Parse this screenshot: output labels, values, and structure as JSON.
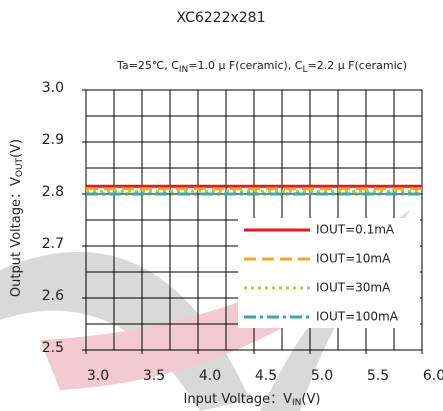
{
  "chart_data": {
    "type": "line",
    "title": "XC6222x281",
    "subtitle": [
      "Ta=25℃, C",
      "IN",
      "=1.0 μ F(ceramic), C",
      "L",
      "=2.2 μ F(ceramic)"
    ],
    "x_label": [
      "Input Voltage：V",
      "IN",
      "(V)"
    ],
    "y_label": [
      "Output Voltage：V",
      "OUT",
      "(V)"
    ],
    "x": [
      3.0,
      3.5,
      4.0,
      4.5,
      5.0,
      5.5,
      6.0
    ],
    "series": [
      {
        "name": "IOUT=0.1mA",
        "color": "#e41a1c",
        "style": "solid",
        "values": [
          2.815,
          2.815,
          2.815,
          2.815,
          2.815,
          2.815,
          2.815
        ]
      },
      {
        "name": "IOUT=10mA",
        "color": "#f5a623",
        "style": "dashed",
        "values": [
          2.81,
          2.81,
          2.81,
          2.81,
          2.81,
          2.81,
          2.81
        ]
      },
      {
        "name": "IOUT=30mA",
        "color": "#a8d43c",
        "style": "dotted",
        "values": [
          2.805,
          2.805,
          2.805,
          2.805,
          2.805,
          2.805,
          2.805
        ]
      },
      {
        "name": "IOUT=100mA",
        "color": "#3ca3b8",
        "style": "dashdot",
        "values": [
          2.8,
          2.8,
          2.8,
          2.8,
          2.8,
          2.8,
          2.8
        ]
      }
    ],
    "xlim": [
      3.0,
      6.0
    ],
    "ylim": [
      2.5,
      3.0
    ],
    "xticks": [
      {
        "value": 3.0,
        "label": "3.0"
      },
      {
        "value": 3.5,
        "label": "3.5"
      },
      {
        "value": 4.0,
        "label": "4.0"
      },
      {
        "value": 4.5,
        "label": "4.5"
      },
      {
        "value": 5.0,
        "label": "5.0"
      },
      {
        "value": 5.5,
        "label": "5.5"
      },
      {
        "value": 6.0,
        "label": "6.0"
      }
    ],
    "yticks": [
      {
        "value": 2.5,
        "label": "2.5"
      },
      2.6,
      2.7,
      2.8,
      2.9,
      {
        "value": 3.0,
        "label": "3.0"
      }
    ],
    "xgrid": [
      3.25,
      3.5,
      3.75,
      4.0,
      4.25,
      4.5,
      4.75,
      5.0,
      5.25,
      5.5,
      5.75
    ],
    "ygrid": [
      2.55,
      2.6,
      2.65,
      2.7,
      2.75,
      2.8,
      2.85,
      2.9,
      2.95
    ],
    "grid": true,
    "legend": "lower right"
  }
}
